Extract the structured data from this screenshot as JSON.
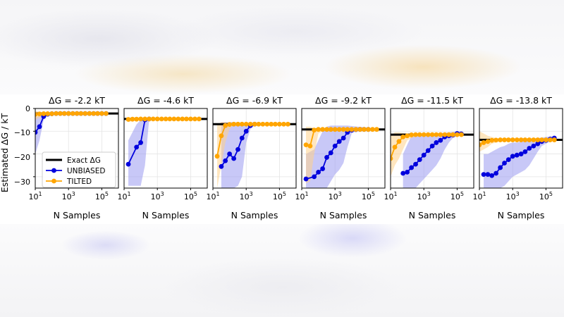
{
  "chart_data": {
    "type": "line",
    "ylabel": "Estimated ΔG / kT",
    "xlabel": "N Samples",
    "xscale": "log",
    "xlim": [
      10,
      1000000
    ],
    "ylim": [
      -35,
      0
    ],
    "x_ticks": [
      10,
      1000,
      100000
    ],
    "x_tick_labels": [
      {
        "b": "10",
        "e": "1"
      },
      {
        "b": "10",
        "e": "3"
      },
      {
        "b": "10",
        "e": "5"
      }
    ],
    "y_ticks": [
      0,
      -10,
      -20,
      -30
    ],
    "y_tick_labels": [
      "0",
      "−10",
      "−20",
      "−30"
    ],
    "grid": true,
    "legend": {
      "location": "lower-left of first panel",
      "entries": [
        {
          "label": "Exact ΔG",
          "color": "#000000"
        },
        {
          "label": "UNBIASED",
          "color": "#0000dd"
        },
        {
          "label": "TILTED",
          "color": "#ffa500"
        }
      ]
    },
    "colors": {
      "exact": "#000000",
      "unbiased": "#0000dd",
      "tilted": "#ffa500",
      "unbiased_band": "#9b9bf0",
      "tilted_band": "#ffd28a"
    },
    "panels": [
      {
        "title": "ΔG = -2.2 kT",
        "exact": -2.2,
        "series": [
          {
            "name": "UNBIASED",
            "x": [
              10,
              18,
              32,
              56,
              100,
              180,
              320,
              560,
              1000,
              1800,
              3200,
              5600,
              10000,
              18000,
              32000,
              56000,
              100000,
              180000
            ],
            "y": [
              -10.5,
              -8,
              -3.5,
              -2.5,
              -2.3,
              -2.2,
              -2.2,
              -2.2,
              -2.2,
              -2.2,
              -2.2,
              -2.2,
              -2.2,
              -2.2,
              -2.2,
              -2.2,
              -2.2,
              -2.2
            ],
            "lower": [
              -20,
              -14,
              -5,
              -3,
              -2.6,
              -2.4,
              -2.3,
              -2.3,
              -2.3,
              -2.3,
              -2.3,
              -2.3,
              -2.3,
              -2.3,
              -2.3,
              -2.3,
              -2.3,
              -2.3
            ],
            "upper": [
              -4,
              -3,
              -2,
              -2,
              -2,
              -2,
              -2.1,
              -2.1,
              -2.1,
              -2.1,
              -2.1,
              -2.1,
              -2.1,
              -2.1,
              -2.1,
              -2.1,
              -2.1,
              -2.1
            ]
          },
          {
            "name": "TILTED",
            "x": [
              10,
              18,
              32,
              56,
              100,
              180,
              320,
              560,
              1000,
              1800,
              3200,
              5600,
              10000,
              18000,
              32000,
              56000,
              100000,
              180000
            ],
            "y": [
              -2.6,
              -2.4,
              -2.3,
              -2.3,
              -2.3,
              -2.2,
              -2.2,
              -2.2,
              -2.2,
              -2.2,
              -2.2,
              -2.2,
              -2.2,
              -2.2,
              -2.2,
              -2.2,
              -2.2,
              -2.2
            ],
            "lower": [
              -5,
              -4,
              -3,
              -2.8,
              -2.6,
              -2.5,
              -2.4,
              -2.4,
              -2.3,
              -2.3,
              -2.3,
              -2.3,
              -2.3,
              -2.3,
              -2.3,
              -2.3,
              -2.3,
              -2.3
            ],
            "upper": [
              -1,
              -1.5,
              -1.8,
              -2,
              -2,
              -2,
              -2.1,
              -2.1,
              -2.1,
              -2.1,
              -2.1,
              -2.1,
              -2.1,
              -2.1,
              -2.1,
              -2.1,
              -2.1,
              -2.1
            ]
          }
        ]
      },
      {
        "title": "ΔG = -4.6 kT",
        "exact": -4.6,
        "series": [
          {
            "name": "UNBIASED",
            "x": [
              18,
              56,
              100,
              180,
              320
            ],
            "y": [
              -24.5,
              -17,
              -15,
              -5,
              -4.6
            ],
            "lower": [
              -34,
              -34,
              -34,
              -25,
              -5
            ],
            "upper": [
              -14,
              -7,
              -5,
              -4.5,
              -4.5
            ]
          },
          {
            "name": "TILTED",
            "x": [
              18,
              32,
              56,
              100,
              180,
              320,
              560,
              1000,
              1800,
              3200,
              5600,
              10000,
              18000,
              32000,
              56000,
              100000,
              180000,
              320000
            ],
            "y": [
              -4.8,
              -4.7,
              -4.7,
              -4.6,
              -4.6,
              -4.6,
              -4.6,
              -4.6,
              -4.6,
              -4.6,
              -4.6,
              -4.6,
              -4.6,
              -4.6,
              -4.6,
              -4.6,
              -4.6,
              -4.6
            ],
            "lower": [
              -6,
              -5.5,
              -5.2,
              -5,
              -4.9,
              -4.8,
              -4.8,
              -4.7,
              -4.7,
              -4.7,
              -4.7,
              -4.7,
              -4.7,
              -4.7,
              -4.7,
              -4.7,
              -4.7,
              -4.7
            ],
            "upper": [
              -4,
              -4.2,
              -4.3,
              -4.4,
              -4.4,
              -4.5,
              -4.5,
              -4.5,
              -4.5,
              -4.5,
              -4.5,
              -4.5,
              -4.5,
              -4.5,
              -4.5,
              -4.5,
              -4.5,
              -4.5
            ]
          }
        ]
      },
      {
        "title": "ΔG = -6.9 kT",
        "exact": -6.9,
        "series": [
          {
            "name": "UNBIASED",
            "x": [
              32,
              56,
              100,
              180,
              320,
              560,
              1000,
              1800,
              3200
            ],
            "y": [
              -25.5,
              -23,
              -20,
              -22,
              -18,
              -13,
              -10,
              -7.5,
              -6.9
            ],
            "lower": [
              -35,
              -35,
              -35,
              -35,
              -34,
              -30,
              -15,
              -9,
              -7.2
            ],
            "upper": [
              -6,
              -6,
              -6,
              -6,
              -6.2,
              -6.4,
              -6.6,
              -6.7,
              -6.8
            ]
          },
          {
            "name": "TILTED",
            "x": [
              18,
              32,
              56,
              100,
              180,
              320,
              560,
              1000,
              1800,
              3200,
              5600,
              10000,
              18000,
              32000,
              56000,
              100000,
              180000,
              320000
            ],
            "y": [
              -21,
              -12,
              -7.5,
              -7,
              -6.9,
              -6.9,
              -6.9,
              -6.9,
              -6.9,
              -6.9,
              -6.9,
              -6.9,
              -6.9,
              -6.9,
              -6.9,
              -6.9,
              -6.9,
              -6.9
            ],
            "lower": [
              -35,
              -25,
              -15,
              -9,
              -7.5,
              -7.3,
              -7.2,
              -7.1,
              -7.1,
              -7.1,
              -7.1,
              -7.1,
              -7.1,
              -7.1,
              -7.1,
              -7.1,
              -7.1,
              -7.1
            ],
            "upper": [
              -7,
              -6,
              -6,
              -6.2,
              -6.5,
              -6.6,
              -6.7,
              -6.7,
              -6.8,
              -6.8,
              -6.8,
              -6.8,
              -6.8,
              -6.8,
              -6.8,
              -6.8,
              -6.8,
              -6.8
            ]
          }
        ]
      },
      {
        "title": "ΔG = -9.2 kT",
        "exact": -9.2,
        "series": [
          {
            "name": "UNBIASED",
            "x": [
              18,
              56,
              100,
              180,
              320,
              560,
              1000,
              1800,
              3200,
              5600,
              10000,
              18000,
              32000,
              56000,
              100000
            ],
            "y": [
              -31,
              -30,
              -28,
              -26.5,
              -21.5,
              -19.5,
              -16.5,
              -14.5,
              -13,
              -10.5,
              -9.5,
              -9.3,
              -9.2,
              -9.2,
              -9.2
            ],
            "lower": [
              -35,
              -35,
              -35,
              -35,
              -35,
              -32,
              -29,
              -27,
              -24,
              -17,
              -11,
              -10,
              -9.7,
              -9.5,
              -9.4
            ],
            "upper": [
              -20,
              -18,
              -14,
              -10,
              -8,
              -7.5,
              -7.5,
              -7.5,
              -7.5,
              -7.5,
              -7.7,
              -7.9,
              -8.1,
              -8.3,
              -8.5
            ]
          },
          {
            "name": "TILTED",
            "x": [
              18,
              32,
              56,
              100,
              180,
              320,
              560,
              1000,
              1800,
              3200,
              5600,
              10000,
              18000,
              32000,
              56000,
              100000,
              180000,
              320000
            ],
            "y": [
              -16,
              -16.5,
              -9.5,
              -9.2,
              -9.2,
              -9.2,
              -9.2,
              -9.2,
              -9.2,
              -9.2,
              -9.2,
              -9.2,
              -9.2,
              -9.2,
              -9.2,
              -9.2,
              -9.2,
              -9.2
            ],
            "lower": [
              -33,
              -32,
              -20,
              -11,
              -10,
              -9.8,
              -9.6,
              -9.5,
              -9.4,
              -9.4,
              -9.3,
              -9.3,
              -9.3,
              -9.3,
              -9.3,
              -9.3,
              -9.3,
              -9.3
            ],
            "upper": [
              -8,
              -8,
              -8.5,
              -8.8,
              -8.9,
              -9,
              -9,
              -9,
              -9.1,
              -9.1,
              -9.1,
              -9.1,
              -9.1,
              -9.1,
              -9.1,
              -9.1,
              -9.1,
              -9.1
            ]
          }
        ]
      },
      {
        "title": "ΔG = -11.5 kT",
        "exact": -11.5,
        "series": [
          {
            "name": "UNBIASED",
            "x": [
              56,
              100,
              180,
              320,
              560,
              1000,
              1800,
              3200,
              5600,
              10000,
              18000,
              32000,
              56000,
              100000,
              180000
            ],
            "y": [
              -28.5,
              -28,
              -26,
              -24.5,
              -22.5,
              -20.5,
              -18.5,
              -16.5,
              -15,
              -14,
              -12.5,
              -12,
              -11.7,
              -11,
              -11.2
            ],
            "lower": [
              -35,
              -35,
              -35,
              -35,
              -33,
              -31,
              -29,
              -27,
              -25,
              -22,
              -18,
              -15,
              -13,
              -12,
              -12
            ],
            "upper": [
              -20,
              -16,
              -12,
              -11,
              -11,
              -11,
              -11,
              -11,
              -11,
              -10.8,
              -10.6,
              -10.5,
              -10.3,
              -10.1,
              -10
            ]
          },
          {
            "name": "TILTED",
            "x": [
              10,
              18,
              32,
              56,
              100,
              180,
              320,
              560,
              1000,
              1800,
              3200,
              5600,
              10000,
              18000,
              32000,
              56000,
              100000,
              180000
            ],
            "y": [
              -22,
              -17,
              -14.5,
              -12.5,
              -12,
              -11.6,
              -11.5,
              -11.5,
              -11.5,
              -11.5,
              -11.5,
              -11.5,
              -11.5,
              -11.5,
              -11.5,
              -11.5,
              -11.5,
              -11.5
            ],
            "lower": [
              -30,
              -25,
              -22,
              -18,
              -14,
              -13,
              -12.5,
              -12.2,
              -12,
              -11.9,
              -11.8,
              -11.7,
              -11.7,
              -11.6,
              -11.6,
              -11.6,
              -11.6,
              -11.6
            ],
            "upper": [
              -12,
              -10.5,
              -10.5,
              -10.8,
              -11,
              -11.1,
              -11.2,
              -11.3,
              -11.3,
              -11.4,
              -11.4,
              -11.4,
              -11.4,
              -11.4,
              -11.4,
              -11.4,
              -11.4,
              -11.4
            ]
          }
        ]
      },
      {
        "title": "ΔG = -13.8 kT",
        "exact": -13.8,
        "series": [
          {
            "name": "UNBIASED",
            "x": [
              18,
              32,
              56,
              100,
              180,
              320,
              560,
              1000,
              1800,
              3200,
              5600,
              10000,
              18000,
              32000,
              56000,
              100000,
              180000,
              320000
            ],
            "y": [
              -29,
              -29,
              -29.5,
              -28.5,
              -26,
              -24,
              -22.5,
              -21,
              -20.5,
              -20,
              -19,
              -17.5,
              -16.5,
              -15.5,
              -14.5,
              -14,
              -13.5,
              -13
            ],
            "lower": [
              -35,
              -35,
              -35,
              -35,
              -35,
              -34,
              -32,
              -30,
              -29,
              -28,
              -27,
              -25,
              -22,
              -19,
              -16.5,
              -15.5,
              -14.5,
              -14
            ],
            "upper": [
              -20,
              -20,
              -19,
              -18,
              -17,
              -16.5,
              -15.5,
              -15,
              -15,
              -14.5,
              -14,
              -13.5,
              -13.2,
              -13,
              -12.8,
              -12.5,
              -12.3,
              -12
            ]
          },
          {
            "name": "TILTED",
            "x": [
              10,
              18,
              32,
              56,
              100,
              180,
              320,
              560,
              1000,
              1800,
              3200,
              5600,
              10000,
              18000,
              32000,
              56000,
              100000,
              180000,
              320000
            ],
            "y": [
              -16,
              -15,
              -14.5,
              -14,
              -13.9,
              -13.8,
              -13.8,
              -13.8,
              -13.8,
              -13.8,
              -13.8,
              -13.8,
              -13.8,
              -13.8,
              -13.8,
              -13.8,
              -13.8,
              -13.8,
              -13.8
            ],
            "lower": [
              -19,
              -18,
              -17,
              -15.5,
              -15,
              -14.5,
              -14.3,
              -14.2,
              -14.1,
              -14,
              -14,
              -14,
              -14,
              -13.9,
              -13.9,
              -13.9,
              -13.9,
              -13.9,
              -13.9
            ],
            "upper": [
              -10,
              -11,
              -12,
              -12.5,
              -13,
              -13.2,
              -13.4,
              -13.5,
              -13.5,
              -13.6,
              -13.6,
              -13.6,
              -13.7,
              -13.7,
              -13.7,
              -13.7,
              -13.7,
              -13.7,
              -13.7
            ]
          }
        ]
      }
    ]
  }
}
